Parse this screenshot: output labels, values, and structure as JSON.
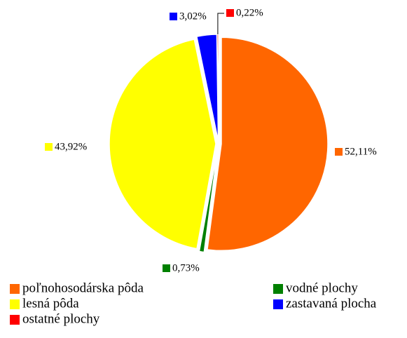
{
  "chart_data": {
    "type": "pie",
    "categories": [
      "poľnohosodárska pôda",
      "vodné plochy",
      "lesná pôda",
      "zastavaná plocha",
      "ostatné plochy"
    ],
    "values": [
      52.11,
      0.73,
      43.92,
      3.02,
      0.22
    ],
    "value_labels": [
      "52,11%",
      "0,73%",
      "43,92%",
      "3,02%",
      "0,22%"
    ],
    "colors": [
      "#ff6600",
      "#008000",
      "#ffff00",
      "#0000ff",
      "#ff0000"
    ],
    "legend": "bottom"
  }
}
